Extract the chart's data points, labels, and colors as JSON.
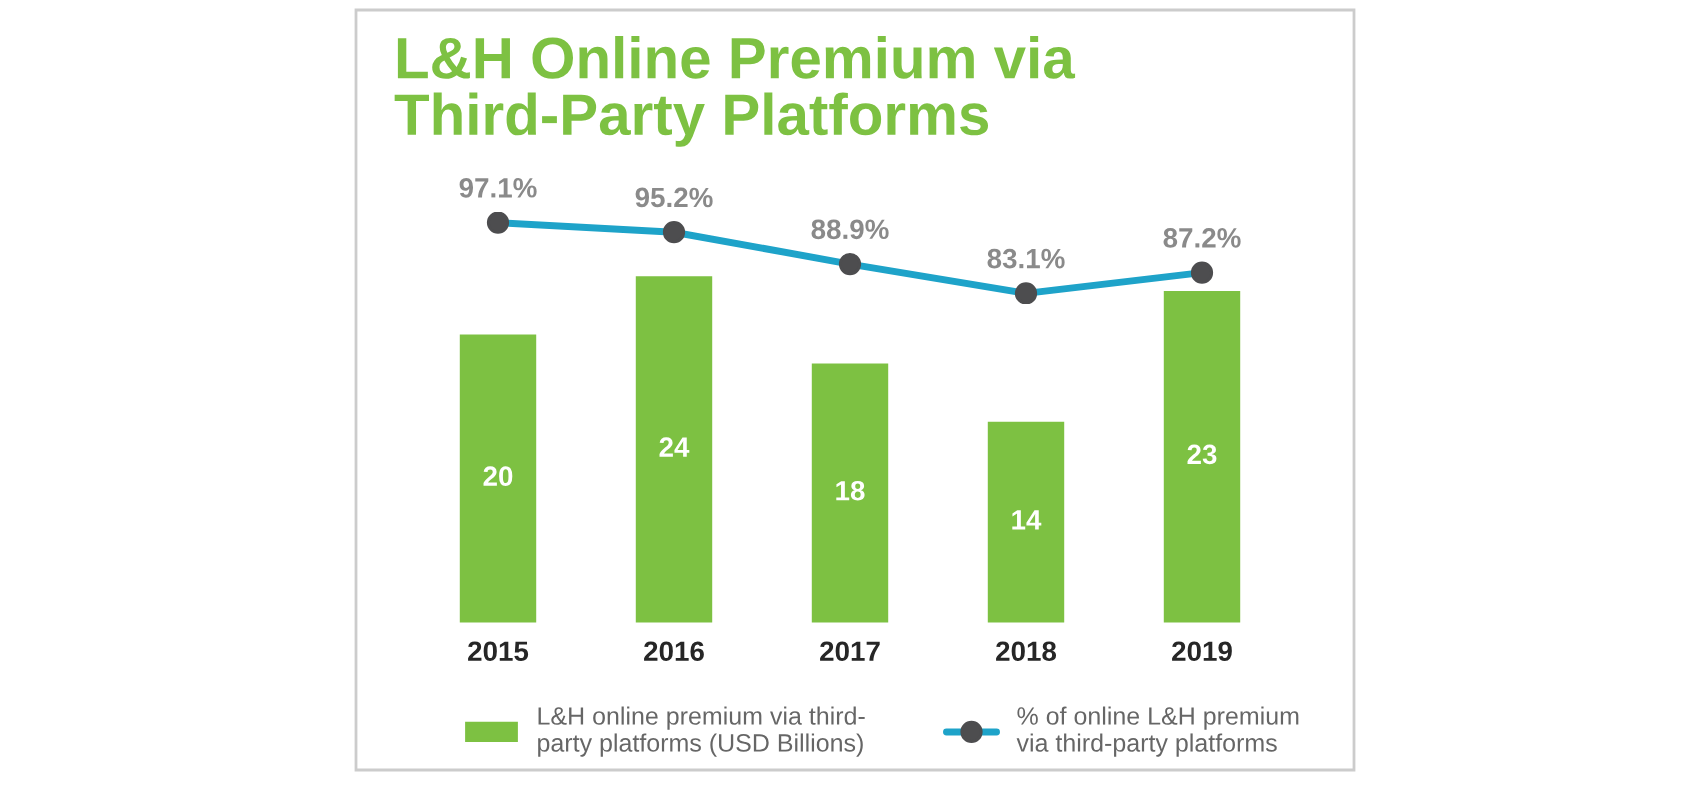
{
  "chart_data": [
    {
      "type": "line",
      "categories": [
        "2015",
        "2016",
        "2017",
        "2018",
        "2019"
      ],
      "tick_labels": false,
      "series": [
        {
          "name": "% of online L&H premium\nvia third-party platforms",
          "color": "#1ea3c9",
          "values": [
            97.1,
            95.2,
            88.9,
            83.1,
            87.2
          ],
          "value_labels": [
            "97.1%",
            "95.2%",
            "88.9%",
            "83.1%",
            "87.2%"
          ]
        }
      ],
      "marker": "circle",
      "legend": "bottom",
      "grid": false
    },
    {
      "type": "bar",
      "title": "L&H Online Premium via\nThird-Party Platforms",
      "categories": [
        "2015",
        "2016",
        "2017",
        "2018",
        "2019"
      ],
      "series": [
        {
          "name": "L&H online premium via third-\nparty platforms (USD Billions)",
          "color": "#7dc142",
          "values": [
            20,
            24,
            18,
            14,
            23
          ]
        }
      ],
      "data_labels": true,
      "legend": "bottom",
      "grid": false
    }
  ]
}
